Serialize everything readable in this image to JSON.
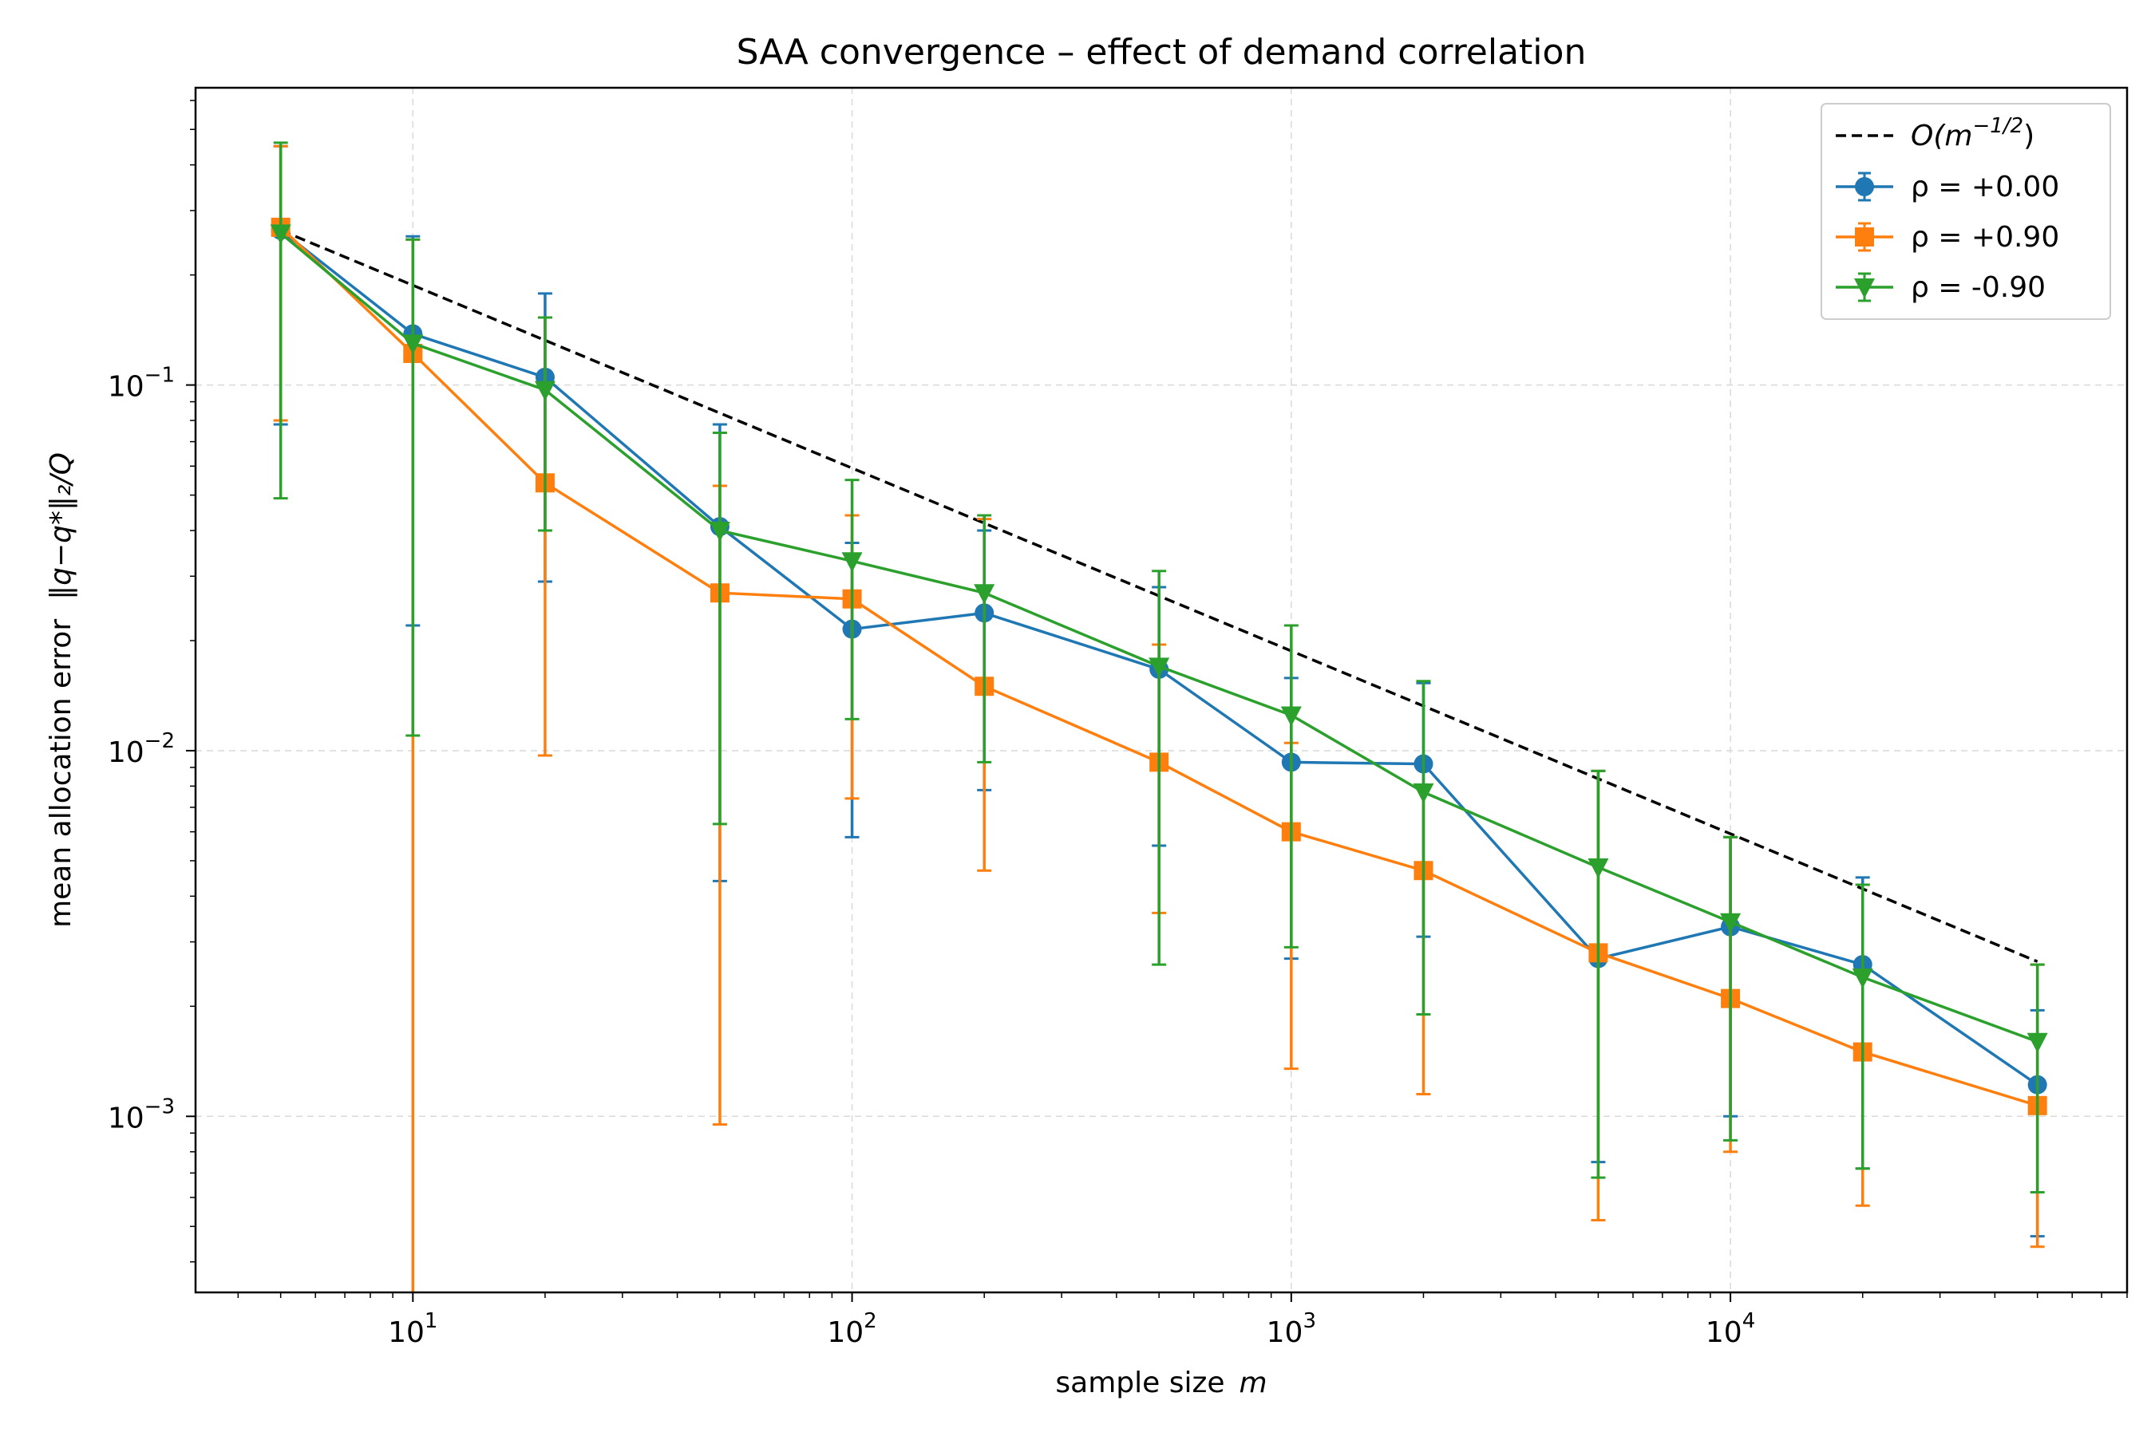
{
  "chart_data": {
    "type": "line",
    "title": "SAA convergence – effect of demand correlation",
    "xlabel": {
      "text": "sample size",
      "var": "m"
    },
    "ylabel": {
      "text": "mean allocation error",
      "formula": "‖q−q*‖₂/Q"
    },
    "xscale": "log",
    "yscale": "log",
    "xlim": [
      3.2,
      80000
    ],
    "ylim": [
      0.00033,
      0.65
    ],
    "grid": true,
    "legend_position": "top-right",
    "x_ticks": [
      {
        "value": 10,
        "base": "10",
        "exp": "1"
      },
      {
        "value": 100,
        "base": "10",
        "exp": "2"
      },
      {
        "value": 1000,
        "base": "10",
        "exp": "3"
      },
      {
        "value": 10000,
        "base": "10",
        "exp": "4"
      }
    ],
    "y_ticks": [
      {
        "value": 0.001,
        "base": "10",
        "exp": "−3"
      },
      {
        "value": 0.01,
        "base": "10",
        "exp": "−2"
      },
      {
        "value": 0.1,
        "base": "10",
        "exp": "−1"
      }
    ],
    "x": [
      5,
      10,
      20,
      50,
      100,
      200,
      500,
      1000,
      2000,
      5000,
      10000,
      20000,
      50000
    ],
    "reference": {
      "name": "O(m^{-1/2})",
      "label_main": "O(m",
      "label_sup": "−1/2",
      "label_end": ")",
      "x": [
        5,
        50000
      ],
      "y": [
        0.265,
        0.00265
      ],
      "color": "#000000",
      "dash": true
    },
    "series": [
      {
        "name": "ρ = +0.00",
        "color": "#1f77b4",
        "marker": "circle",
        "values": [
          0.265,
          0.138,
          0.105,
          0.041,
          0.0215,
          0.0238,
          0.0167,
          0.0093,
          0.0092,
          0.0027,
          0.0033,
          0.0026,
          0.00122
        ],
        "err_low": [
          0.078,
          0.022,
          0.029,
          0.0044,
          0.0058,
          0.0078,
          0.0055,
          0.0027,
          0.0031,
          0.00075,
          0.001,
          0.00072,
          0.00047
        ],
        "err_high": [
          0.45,
          0.255,
          0.178,
          0.078,
          0.037,
          0.04,
          0.028,
          0.0158,
          0.0153,
          0.0088,
          0.0058,
          0.0045,
          0.00195
        ]
      },
      {
        "name": "ρ = +0.90",
        "color": "#ff7f0e",
        "marker": "square",
        "values": [
          0.27,
          0.122,
          0.054,
          0.027,
          0.026,
          0.015,
          0.0093,
          0.006,
          0.0047,
          0.0028,
          0.0021,
          0.0015,
          0.00107
        ],
        "err_low": [
          0.08,
          0.0003,
          0.0097,
          0.00095,
          0.0074,
          0.0047,
          0.0036,
          0.00135,
          0.00115,
          0.00052,
          0.0008,
          0.00057,
          0.00044
        ],
        "err_high": [
          0.45,
          0.25,
          0.153,
          0.053,
          0.044,
          0.043,
          0.0195,
          0.0105,
          0.008,
          0.0088,
          0.0058,
          0.0043,
          0.0026
        ]
      },
      {
        "name": "ρ = -0.90",
        "color": "#2ca02c",
        "marker": "triangle-down",
        "values": [
          0.26,
          0.13,
          0.097,
          0.04,
          0.033,
          0.027,
          0.017,
          0.0125,
          0.0077,
          0.0048,
          0.0034,
          0.0024,
          0.0016
        ],
        "err_low": [
          0.049,
          0.011,
          0.04,
          0.0063,
          0.0122,
          0.0093,
          0.0026,
          0.0029,
          0.0019,
          0.00068,
          0.00086,
          0.00072,
          0.00062
        ],
        "err_high": [
          0.46,
          0.25,
          0.153,
          0.074,
          0.055,
          0.044,
          0.031,
          0.022,
          0.0155,
          0.0088,
          0.0058,
          0.0043,
          0.0026
        ]
      }
    ]
  }
}
